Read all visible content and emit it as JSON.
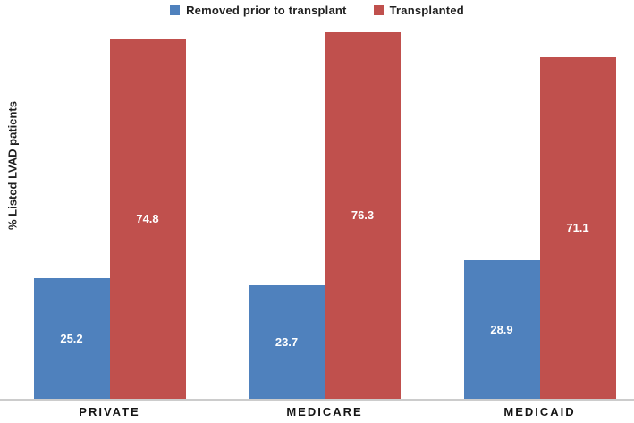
{
  "chart_data": {
    "type": "bar",
    "title": "",
    "categories": [
      "PRIVATE",
      "MEDICARE",
      "MEDICAID"
    ],
    "series": [
      {
        "name": "Removed prior to transplant",
        "color": "#4F81BD",
        "values": [
          25.2,
          23.7,
          28.9
        ]
      },
      {
        "name": "Transplanted",
        "color": "#C0504D",
        "values": [
          74.8,
          76.3,
          71.1
        ]
      }
    ],
    "xlabel": "",
    "ylabel": "% Listed LVAD patients",
    "ylim": [
      0,
      80
    ],
    "grid": false,
    "y_axis_ticks_visible": false,
    "legend_position": "top-center",
    "data_labels": "inside-center",
    "data_label_color": "#FFFFFF",
    "axis_line_color": "#CCCCCC",
    "background": "#FFFFFF"
  }
}
